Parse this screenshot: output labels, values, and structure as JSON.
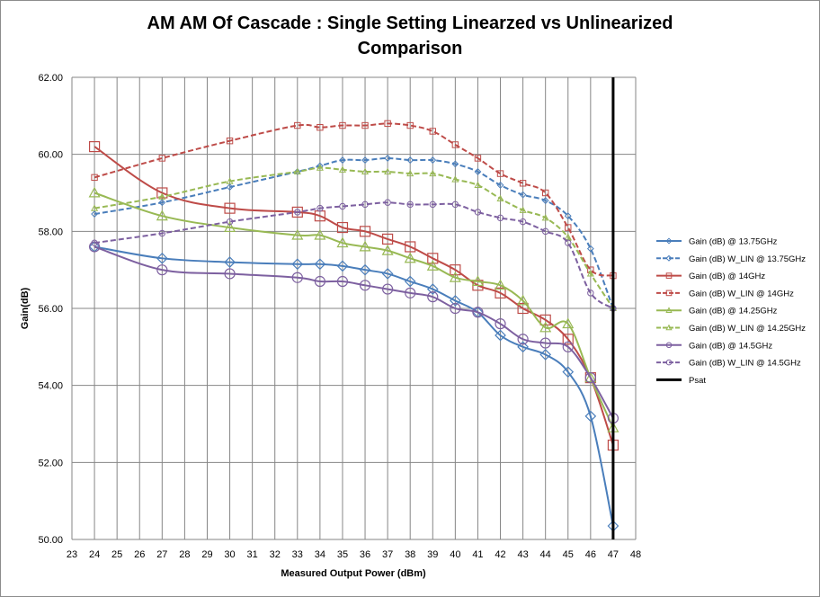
{
  "chart_data": {
    "type": "line",
    "title_line1": "AM AM Of Cascade : Single Setting Linearzed vs Unlinearized",
    "title_line2": "Comparison",
    "xlabel": "Measured Output Power (dBm)",
    "ylabel": "Gain(dB)",
    "xlim": [
      23,
      48
    ],
    "ylim": [
      50,
      62
    ],
    "x_ticks": [
      "23",
      "24",
      "25",
      "26",
      "27",
      "28",
      "29",
      "30",
      "31",
      "32",
      "33",
      "34",
      "35",
      "36",
      "37",
      "38",
      "39",
      "40",
      "41",
      "42",
      "43",
      "44",
      "45",
      "46",
      "47",
      "48"
    ],
    "y_ticks": [
      "50.00",
      "52.00",
      "54.00",
      "56.00",
      "58.00",
      "60.00",
      "62.00"
    ],
    "grid": true,
    "legend_position": "right",
    "series": [
      {
        "name": "Gain (dB) @ 13.75GHz",
        "color": "#4a7ebb",
        "dash": false,
        "marker": "diamond",
        "points": [
          [
            24,
            57.6
          ],
          [
            27,
            57.3
          ],
          [
            30,
            57.2
          ],
          [
            33,
            57.15
          ],
          [
            34,
            57.15
          ],
          [
            35,
            57.1
          ],
          [
            36,
            57.0
          ],
          [
            37,
            56.9
          ],
          [
            38,
            56.7
          ],
          [
            39,
            56.5
          ],
          [
            40,
            56.2
          ],
          [
            41,
            55.9
          ],
          [
            42,
            55.3
          ],
          [
            43,
            55.0
          ],
          [
            44,
            54.8
          ],
          [
            45,
            54.35
          ],
          [
            46,
            53.2
          ],
          [
            47,
            50.35
          ]
        ]
      },
      {
        "name": "Gain (dB) W_LIN @ 13.75GHz",
        "color": "#4a7ebb",
        "dash": true,
        "marker": "diamond",
        "points": [
          [
            24,
            58.45
          ],
          [
            27,
            58.75
          ],
          [
            30,
            59.15
          ],
          [
            33,
            59.55
          ],
          [
            34,
            59.7
          ],
          [
            35,
            59.85
          ],
          [
            36,
            59.85
          ],
          [
            37,
            59.9
          ],
          [
            38,
            59.85
          ],
          [
            39,
            59.85
          ],
          [
            40,
            59.75
          ],
          [
            41,
            59.55
          ],
          [
            42,
            59.2
          ],
          [
            43,
            58.95
          ],
          [
            44,
            58.8
          ],
          [
            45,
            58.4
          ],
          [
            46,
            57.55
          ],
          [
            47,
            56.0
          ]
        ]
      },
      {
        "name": "Gain (dB) @ 14GHz",
        "color": "#be4b48",
        "dash": false,
        "marker": "square",
        "points": [
          [
            24,
            60.2
          ],
          [
            27,
            59.0
          ],
          [
            30,
            58.6
          ],
          [
            33,
            58.5
          ],
          [
            34,
            58.4
          ],
          [
            35,
            58.1
          ],
          [
            36,
            58.0
          ],
          [
            37,
            57.8
          ],
          [
            38,
            57.6
          ],
          [
            39,
            57.3
          ],
          [
            40,
            57.0
          ],
          [
            41,
            56.6
          ],
          [
            42,
            56.4
          ],
          [
            43,
            56.0
          ],
          [
            44,
            55.7
          ],
          [
            45,
            55.2
          ],
          [
            46,
            54.2
          ],
          [
            47,
            52.45
          ]
        ]
      },
      {
        "name": "Gain (dB) W_LIN @ 14GHz",
        "color": "#be4b48",
        "dash": true,
        "marker": "square",
        "points": [
          [
            24,
            59.4
          ],
          [
            27,
            59.9
          ],
          [
            30,
            60.35
          ],
          [
            33,
            60.75
          ],
          [
            34,
            60.7
          ],
          [
            35,
            60.75
          ],
          [
            36,
            60.75
          ],
          [
            37,
            60.8
          ],
          [
            38,
            60.75
          ],
          [
            39,
            60.6
          ],
          [
            40,
            60.25
          ],
          [
            41,
            59.9
          ],
          [
            42,
            59.5
          ],
          [
            43,
            59.25
          ],
          [
            44,
            59.0
          ],
          [
            45,
            58.1
          ],
          [
            46,
            57.0
          ],
          [
            47,
            56.85
          ]
        ]
      },
      {
        "name": "Gain (dB) @ 14.25GHz",
        "color": "#98b954",
        "dash": false,
        "marker": "triangle",
        "points": [
          [
            24,
            59.0
          ],
          [
            27,
            58.4
          ],
          [
            30,
            58.1
          ],
          [
            33,
            57.9
          ],
          [
            34,
            57.9
          ],
          [
            35,
            57.7
          ],
          [
            36,
            57.6
          ],
          [
            37,
            57.5
          ],
          [
            38,
            57.3
          ],
          [
            39,
            57.1
          ],
          [
            40,
            56.8
          ],
          [
            41,
            56.7
          ],
          [
            42,
            56.6
          ],
          [
            43,
            56.2
          ],
          [
            44,
            55.5
          ],
          [
            45,
            55.6
          ],
          [
            46,
            54.2
          ],
          [
            47,
            52.9
          ]
        ]
      },
      {
        "name": "Gain (dB) W_LIN @ 14.25GHz",
        "color": "#98b954",
        "dash": true,
        "marker": "triangle",
        "points": [
          [
            24,
            58.6
          ],
          [
            27,
            58.9
          ],
          [
            30,
            59.3
          ],
          [
            33,
            59.55
          ],
          [
            34,
            59.65
          ],
          [
            35,
            59.6
          ],
          [
            36,
            59.55
          ],
          [
            37,
            59.55
          ],
          [
            38,
            59.5
          ],
          [
            39,
            59.5
          ],
          [
            40,
            59.35
          ],
          [
            41,
            59.2
          ],
          [
            42,
            58.85
          ],
          [
            43,
            58.55
          ],
          [
            44,
            58.35
          ],
          [
            45,
            57.85
          ],
          [
            46,
            56.9
          ],
          [
            47,
            56.0
          ]
        ]
      },
      {
        "name": "Gain (dB) @ 14.5GHz",
        "color": "#7d60a0",
        "dash": false,
        "marker": "circle",
        "points": [
          [
            24,
            57.6
          ],
          [
            27,
            57.0
          ],
          [
            30,
            56.9
          ],
          [
            33,
            56.8
          ],
          [
            34,
            56.7
          ],
          [
            35,
            56.7
          ],
          [
            36,
            56.6
          ],
          [
            37,
            56.5
          ],
          [
            38,
            56.4
          ],
          [
            39,
            56.3
          ],
          [
            40,
            56.0
          ],
          [
            41,
            55.9
          ],
          [
            42,
            55.6
          ],
          [
            43,
            55.2
          ],
          [
            44,
            55.1
          ],
          [
            45,
            55.0
          ],
          [
            46,
            54.2
          ],
          [
            47,
            53.15
          ]
        ]
      },
      {
        "name": "Gain (dB) W_LIN @ 14.5GHz",
        "color": "#7d60a0",
        "dash": true,
        "marker": "circle",
        "points": [
          [
            24,
            57.7
          ],
          [
            27,
            57.95
          ],
          [
            30,
            58.25
          ],
          [
            33,
            58.5
          ],
          [
            34,
            58.6
          ],
          [
            35,
            58.65
          ],
          [
            36,
            58.7
          ],
          [
            37,
            58.75
          ],
          [
            38,
            58.7
          ],
          [
            39,
            58.7
          ],
          [
            40,
            58.7
          ],
          [
            41,
            58.5
          ],
          [
            42,
            58.35
          ],
          [
            43,
            58.25
          ],
          [
            44,
            58.0
          ],
          [
            45,
            57.7
          ],
          [
            46,
            56.4
          ],
          [
            47,
            56.0
          ]
        ]
      },
      {
        "name": "Psat",
        "color": "#000000",
        "dash": false,
        "marker": "none",
        "points": [
          [
            47,
            50
          ],
          [
            47,
            62
          ]
        ]
      }
    ]
  }
}
